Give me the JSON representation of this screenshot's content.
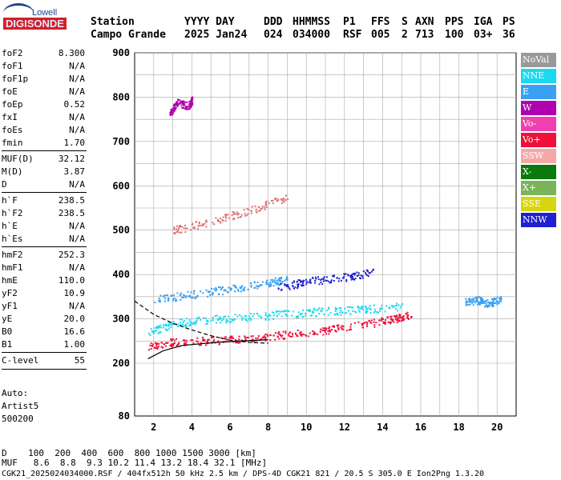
{
  "logo": {
    "top": "Lowell",
    "main": "DIGISONDE"
  },
  "header": {
    "row1": [
      "Station",
      "YYYY DAY",
      "DDD",
      "HHMMSS",
      "P1",
      "FFS",
      "S",
      "AXN",
      "PPS",
      "IGA",
      "PS"
    ],
    "row2": [
      "Campo Grande",
      "2025 Jan24",
      "024",
      "034000",
      "RSF",
      "005",
      "2",
      "713",
      "100",
      "03+",
      "36"
    ]
  },
  "params": [
    {
      "label": "foF2",
      "value": "8.300"
    },
    {
      "label": "foF1",
      "value": "N/A"
    },
    {
      "label": "foF1p",
      "value": "N/A"
    },
    {
      "label": "foE",
      "value": "N/A"
    },
    {
      "label": "foEp",
      "value": "0.52"
    },
    {
      "label": "fxI",
      "value": "N/A"
    },
    {
      "label": "foEs",
      "value": "N/A"
    },
    {
      "label": "fmin",
      "value": "1.70"
    },
    {
      "label": "MUF(D)",
      "value": "32.12"
    },
    {
      "label": "M(D)",
      "value": "3.87"
    },
    {
      "label": "D",
      "value": "N/A"
    },
    {
      "label": "h`F",
      "value": "238.5"
    },
    {
      "label": "h`F2",
      "value": "238.5"
    },
    {
      "label": "h`E",
      "value": "N/A"
    },
    {
      "label": "h`Es",
      "value": "N/A"
    },
    {
      "label": "hmF2",
      "value": "252.3"
    },
    {
      "label": "hmF1",
      "value": "N/A"
    },
    {
      "label": "hmE",
      "value": "110.0"
    },
    {
      "label": "yF2",
      "value": "10.9"
    },
    {
      "label": "yF1",
      "value": "N/A"
    },
    {
      "label": "yE",
      "value": "20.0"
    },
    {
      "label": "B0",
      "value": "16.6"
    },
    {
      "label": "B1",
      "value": "1.00"
    },
    {
      "label": "C-level",
      "value": "55"
    }
  ],
  "auto": {
    "line1": "Auto:",
    "line2": "Artist5",
    "line3": "500200"
  },
  "legend": [
    {
      "label": "NoVal",
      "color": "#999999"
    },
    {
      "label": "NNE",
      "color": "#1ad9f0"
    },
    {
      "label": "E",
      "color": "#3aa0f5"
    },
    {
      "label": "W",
      "color": "#b000b0"
    },
    {
      "label": "Vo-",
      "color": "#f040b0"
    },
    {
      "label": "Vo+",
      "color": "#f0103a"
    },
    {
      "label": "SSW",
      "color": "#f5a8a8"
    },
    {
      "label": "X-",
      "color": "#0a7a0a"
    },
    {
      "label": "X+",
      "color": "#7ab55a"
    },
    {
      "label": "SSE",
      "color": "#d6d610"
    },
    {
      "label": "NNW",
      "color": "#2020d0"
    }
  ],
  "footer": {
    "d_row": "D    100  200  400  600  800 1000 1500 3000 [km]",
    "muf_row": "MUF   8.6  8.8  9.3 10.2 11.4 13.2 18.4 32.1 [MHz]",
    "file_row": "CGK21_2025024034000.RSF / 404fx512h 50 kHz 2.5 km / DPS-4D CGK21 821 / 20.5 S 305.0 E Ion2Png 1.3.20"
  },
  "chart_data": {
    "type": "scatter",
    "xlabel": "",
    "ylabel": "",
    "xlim": [
      1.0,
      21.0
    ],
    "ylim": [
      80,
      900
    ],
    "xticks": [
      2,
      4,
      6,
      8,
      10,
      12,
      14,
      16,
      18,
      20
    ],
    "yticks": [
      80,
      200,
      300,
      400,
      500,
      600,
      700,
      800,
      900
    ],
    "grid": true,
    "legend_position": "right",
    "traces": [
      {
        "name": "F2 lower trace",
        "color": "#f0103a",
        "points": [
          [
            1.7,
            240
          ],
          [
            3,
            248
          ],
          [
            5,
            252
          ],
          [
            7,
            258
          ],
          [
            9,
            265
          ],
          [
            11,
            275
          ],
          [
            13,
            288
          ],
          [
            14.5,
            300
          ],
          [
            15.5,
            312
          ]
        ]
      },
      {
        "name": "F2 cyan trace",
        "color": "#1ad9f0",
        "points": [
          [
            1.7,
            270
          ],
          [
            3,
            290
          ],
          [
            5,
            300
          ],
          [
            7,
            305
          ],
          [
            9,
            312
          ],
          [
            11,
            318
          ],
          [
            13,
            322
          ],
          [
            15,
            330
          ]
        ]
      },
      {
        "name": "Oblique E trace",
        "color": "#3aa0f5",
        "points": [
          [
            2,
            345
          ],
          [
            4,
            356
          ],
          [
            6,
            368
          ],
          [
            8,
            382
          ],
          [
            9,
            390
          ]
        ]
      },
      {
        "name": "NNW band",
        "color": "#2020d0",
        "points": [
          [
            8.5,
            370
          ],
          [
            10,
            385
          ],
          [
            12,
            395
          ],
          [
            13.5,
            405
          ]
        ]
      },
      {
        "name": "Upper spread",
        "color": "#e07070",
        "points": [
          [
            3,
            500
          ],
          [
            5,
            520
          ],
          [
            7,
            545
          ],
          [
            9,
            575
          ]
        ]
      },
      {
        "name": "Far echo",
        "color": "#3aa0f5",
        "points": [
          [
            18.3,
            340
          ],
          [
            19,
            343
          ],
          [
            19.5,
            335
          ],
          [
            20.2,
            345
          ]
        ]
      },
      {
        "name": "Sparse W",
        "color": "#b000b0",
        "points": [
          [
            2.8,
            760
          ],
          [
            3.2,
            790
          ],
          [
            3.8,
            780
          ],
          [
            4,
            795
          ]
        ]
      }
    ],
    "profile_line": {
      "points": [
        [
          1.7,
          210
        ],
        [
          2.5,
          228
        ],
        [
          3.5,
          240
        ],
        [
          5,
          246
        ],
        [
          6.5,
          250
        ],
        [
          8,
          253
        ]
      ]
    },
    "dashed_line": {
      "points": [
        [
          1.0,
          340
        ],
        [
          2,
          310
        ],
        [
          3,
          290
        ],
        [
          4,
          275
        ],
        [
          5,
          262
        ],
        [
          6,
          252
        ],
        [
          7,
          247
        ],
        [
          8,
          245
        ]
      ]
    }
  }
}
